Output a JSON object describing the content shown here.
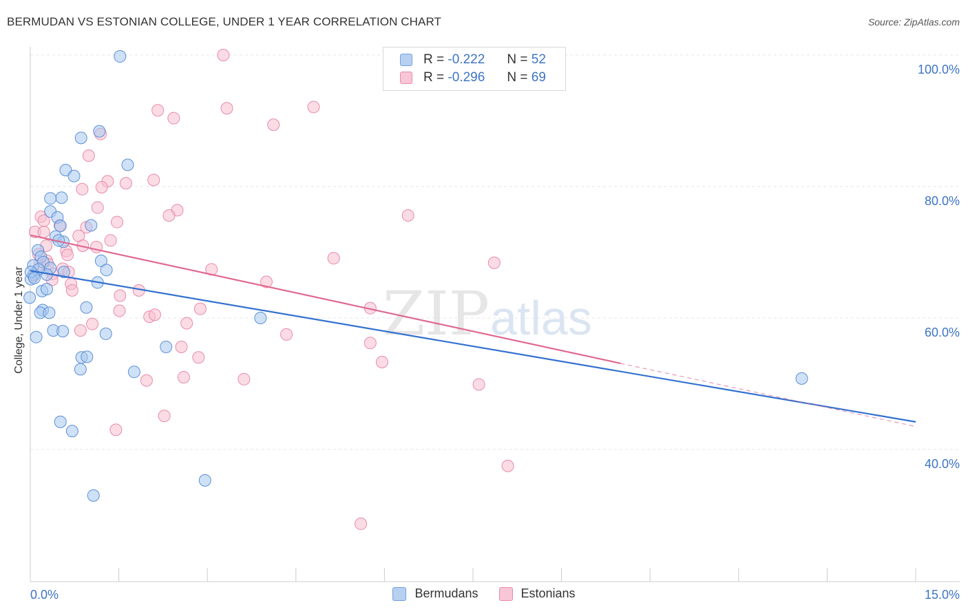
{
  "title": "BERMUDAN VS ESTONIAN COLLEGE, UNDER 1 YEAR CORRELATION CHART",
  "source": "Source: ZipAtlas.com",
  "watermark": {
    "zip": "ZIP",
    "atlas": "atlas"
  },
  "legend": {
    "r_label": "R =",
    "n_label": "N =",
    "rows": [
      {
        "r": "-0.222",
        "n": "52",
        "fill": "#b8d0f0",
        "stroke": "#6fa0e0"
      },
      {
        "r": "-0.296",
        "n": "69",
        "fill": "#f8c6d6",
        "stroke": "#e88aa8"
      }
    ]
  },
  "bottom_legend": [
    "Bermudans",
    "Estonians"
  ],
  "colors": {
    "bermudan_fill": "#a8c8f0",
    "bermudan_stroke": "#5b8fd6",
    "bermudan_line": "#3270d0",
    "estonian_fill": "#f8c0d0",
    "estonian_stroke": "#e88aa8",
    "estonian_line": "#e06890",
    "axis_label": "#3d74c4",
    "grid": "#e4e4e4"
  },
  "chart_data": {
    "type": "scatter",
    "title": "BERMUDAN VS ESTONIAN COLLEGE, UNDER 1 YEAR CORRELATION CHART",
    "xlabel": "",
    "ylabel": "College, Under 1 year",
    "xlim": [
      0,
      15
    ],
    "ylim": [
      20,
      102
    ],
    "x_tick_labels": [
      {
        "value": 0,
        "label": "0.0%"
      },
      {
        "value": 15,
        "label": "15.0%"
      }
    ],
    "y_tick_labels": [
      {
        "value": 100,
        "label": "100.0%"
      },
      {
        "value": 80,
        "label": "80.0%"
      },
      {
        "value": 60,
        "label": "60.0%"
      },
      {
        "value": 40,
        "label": "40.0%"
      }
    ],
    "series": [
      {
        "name": "Bermudans",
        "r": -0.222,
        "n": 52,
        "trend": {
          "x": [
            0,
            15
          ],
          "y": [
            67.2,
            44.2
          ]
        },
        "points": [
          [
            1.52,
            99.8
          ],
          [
            0.86,
            87.4
          ],
          [
            1.17,
            88.4
          ],
          [
            1.65,
            83.3
          ],
          [
            0.6,
            82.5
          ],
          [
            0.74,
            81.6
          ],
          [
            0.53,
            78.3
          ],
          [
            0.34,
            78.2
          ],
          [
            0.34,
            76.2
          ],
          [
            0.46,
            75.3
          ],
          [
            0.51,
            74.0
          ],
          [
            1.03,
            74.1
          ],
          [
            0.43,
            72.4
          ],
          [
            0.56,
            71.6
          ],
          [
            0.13,
            70.3
          ],
          [
            0.18,
            69.3
          ],
          [
            1.2,
            68.7
          ],
          [
            0.05,
            68.0
          ],
          [
            0.22,
            68.5
          ],
          [
            0.34,
            67.6
          ],
          [
            1.29,
            67.3
          ],
          [
            0.06,
            66.6
          ],
          [
            0.01,
            65.9
          ],
          [
            0.28,
            66.6
          ],
          [
            0.57,
            67.0
          ],
          [
            1.14,
            65.4
          ],
          [
            0.2,
            64.1
          ],
          [
            0.28,
            64.4
          ],
          [
            -0.01,
            63.1
          ],
          [
            0.95,
            61.6
          ],
          [
            0.21,
            61.2
          ],
          [
            0.17,
            60.8
          ],
          [
            0.32,
            60.8
          ],
          [
            3.9,
            60.0
          ],
          [
            0.39,
            58.1
          ],
          [
            0.55,
            58.0
          ],
          [
            0.1,
            57.1
          ],
          [
            1.28,
            57.6
          ],
          [
            2.3,
            55.6
          ],
          [
            0.87,
            54.0
          ],
          [
            0.96,
            54.1
          ],
          [
            0.85,
            52.2
          ],
          [
            1.76,
            51.8
          ],
          [
            13.07,
            50.8
          ],
          [
            0.51,
            44.2
          ],
          [
            0.71,
            42.8
          ],
          [
            2.96,
            35.3
          ],
          [
            1.07,
            33.0
          ],
          [
            0.14,
            67.4
          ],
          [
            0.01,
            67.0
          ],
          [
            0.07,
            66.1
          ],
          [
            0.48,
            71.8
          ]
        ]
      },
      {
        "name": "Estonians",
        "r": -0.296,
        "n": 69,
        "trend": {
          "x": [
            0,
            10.0
          ],
          "y": [
            72.6,
            53.1
          ]
        },
        "trend_dashed": {
          "x": [
            10.0,
            15
          ],
          "y": [
            53.1,
            43.5
          ]
        },
        "points": [
          [
            3.27,
            100.0
          ],
          [
            4.8,
            92.1
          ],
          [
            3.33,
            91.9
          ],
          [
            2.16,
            91.6
          ],
          [
            2.43,
            90.4
          ],
          [
            4.12,
            89.4
          ],
          [
            1.19,
            88.0
          ],
          [
            0.99,
            84.7
          ],
          [
            2.09,
            81.0
          ],
          [
            1.31,
            80.8
          ],
          [
            1.62,
            80.5
          ],
          [
            0.88,
            79.6
          ],
          [
            1.21,
            79.9
          ],
          [
            1.14,
            76.8
          ],
          [
            2.49,
            76.4
          ],
          [
            2.35,
            75.6
          ],
          [
            6.4,
            75.6
          ],
          [
            0.18,
            75.4
          ],
          [
            1.47,
            74.6
          ],
          [
            0.23,
            74.8
          ],
          [
            0.5,
            74.1
          ],
          [
            0.95,
            73.8
          ],
          [
            0.08,
            73.1
          ],
          [
            0.23,
            73.1
          ],
          [
            0.82,
            72.5
          ],
          [
            1.36,
            71.8
          ],
          [
            0.27,
            71.0
          ],
          [
            0.89,
            71.0
          ],
          [
            1.12,
            70.8
          ],
          [
            0.61,
            70.2
          ],
          [
            0.63,
            69.6
          ],
          [
            5.14,
            69.1
          ],
          [
            7.86,
            68.4
          ],
          [
            0.28,
            68.7
          ],
          [
            0.16,
            68.1
          ],
          [
            0.55,
            67.5
          ],
          [
            3.07,
            67.4
          ],
          [
            0.65,
            67.0
          ],
          [
            0.38,
            66.7
          ],
          [
            0.05,
            66.4
          ],
          [
            0.37,
            65.8
          ],
          [
            4.0,
            65.5
          ],
          [
            0.69,
            65.2
          ],
          [
            0.71,
            64.2
          ],
          [
            1.84,
            64.2
          ],
          [
            1.52,
            63.4
          ],
          [
            5.76,
            61.5
          ],
          [
            2.88,
            61.4
          ],
          [
            1.51,
            61.1
          ],
          [
            2.02,
            60.2
          ],
          [
            2.11,
            60.5
          ],
          [
            2.65,
            59.2
          ],
          [
            1.05,
            59.1
          ],
          [
            0.85,
            58.1
          ],
          [
            4.34,
            57.5
          ],
          [
            5.76,
            56.2
          ],
          [
            2.56,
            55.6
          ],
          [
            5.96,
            53.3
          ],
          [
            2.85,
            54.0
          ],
          [
            2.6,
            51.0
          ],
          [
            3.62,
            50.7
          ],
          [
            1.97,
            50.5
          ],
          [
            7.6,
            49.9
          ],
          [
            2.27,
            45.1
          ],
          [
            1.45,
            43.0
          ],
          [
            8.09,
            37.5
          ],
          [
            5.6,
            28.7
          ],
          [
            0.3,
            68.2
          ],
          [
            0.14,
            69.7
          ]
        ]
      }
    ]
  }
}
